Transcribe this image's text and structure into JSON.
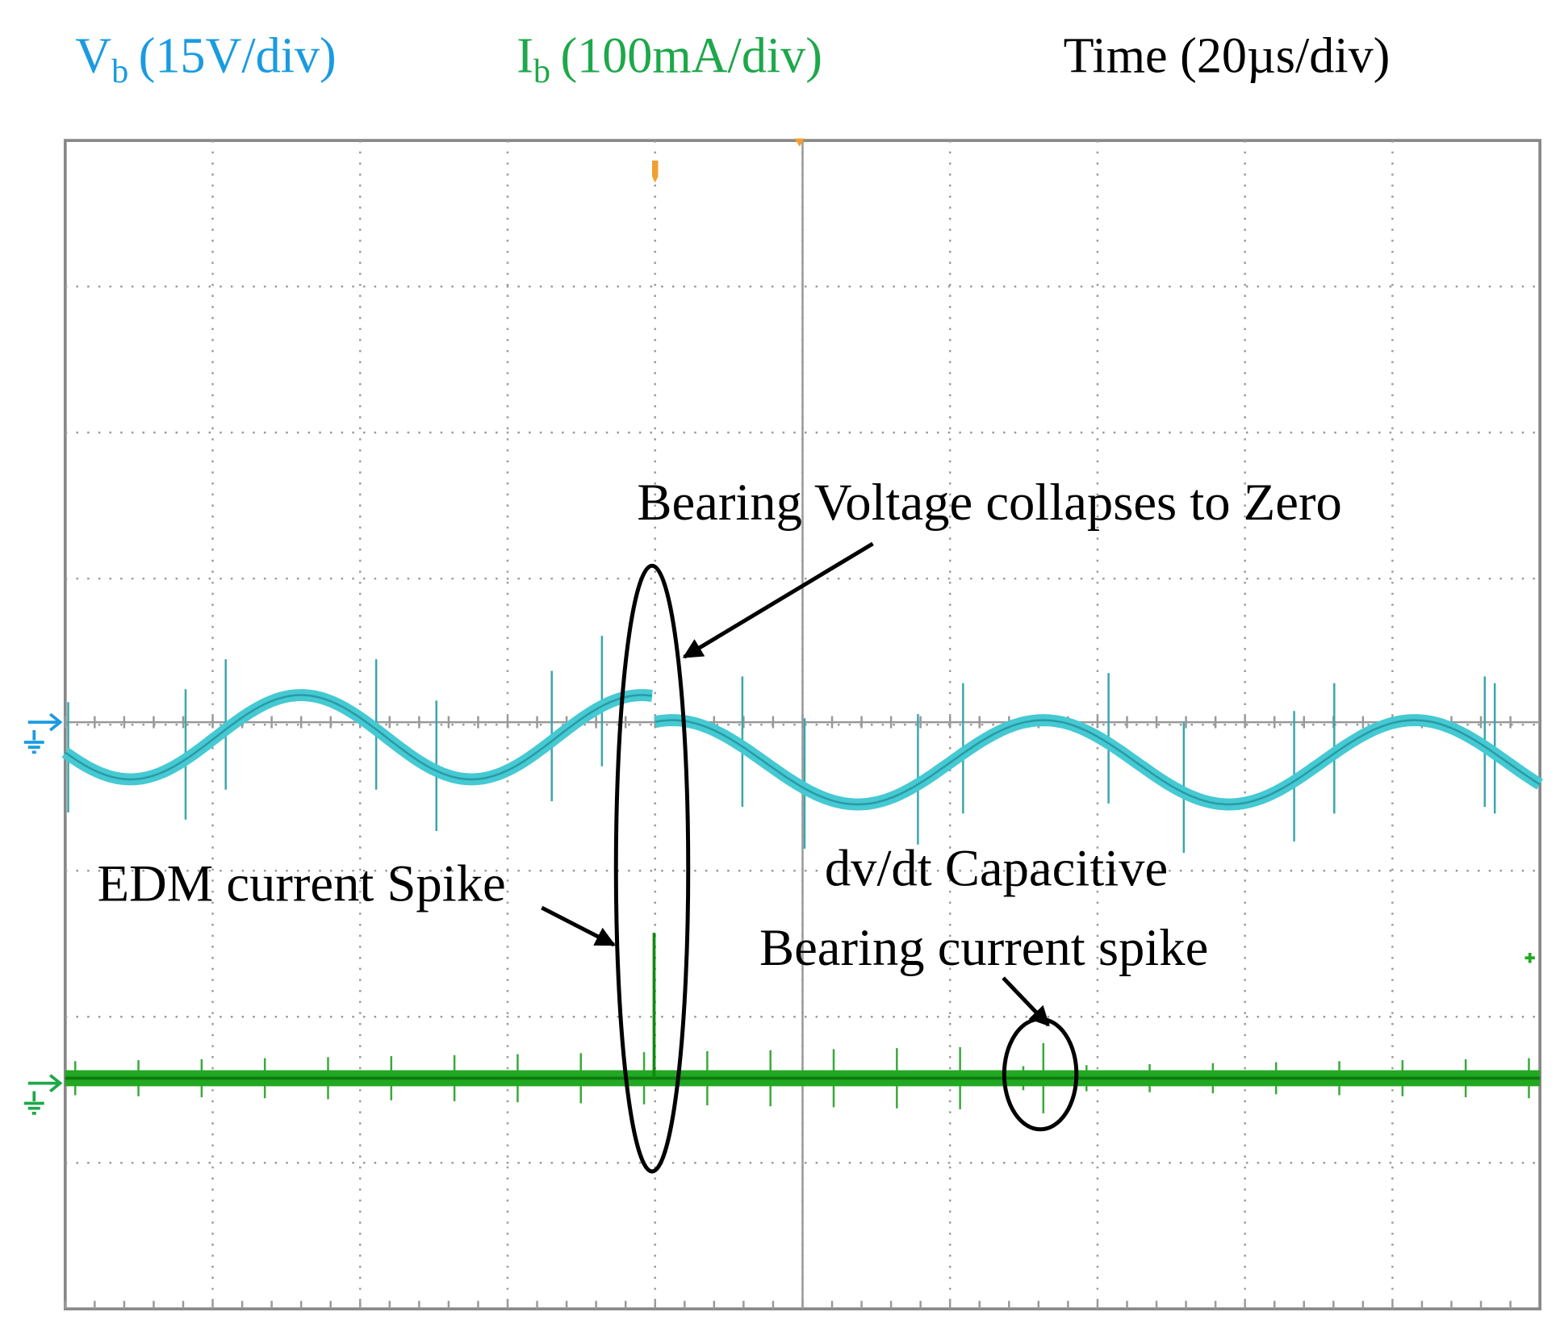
{
  "header": {
    "voltage": {
      "symbol": "V",
      "subscript": "b",
      "scale": "(15V/div)"
    },
    "current": {
      "symbol": "I",
      "subscript": "b",
      "scale": "(100mA/div)"
    },
    "time": "Time (20µs/div)"
  },
  "annotations": {
    "collapse": "Bearing Voltage collapses to Zero",
    "edm": "EDM current Spike",
    "dvdt_line1": "dv/dt Capacitive",
    "dvdt_line2": "Bearing current spike"
  }
}
